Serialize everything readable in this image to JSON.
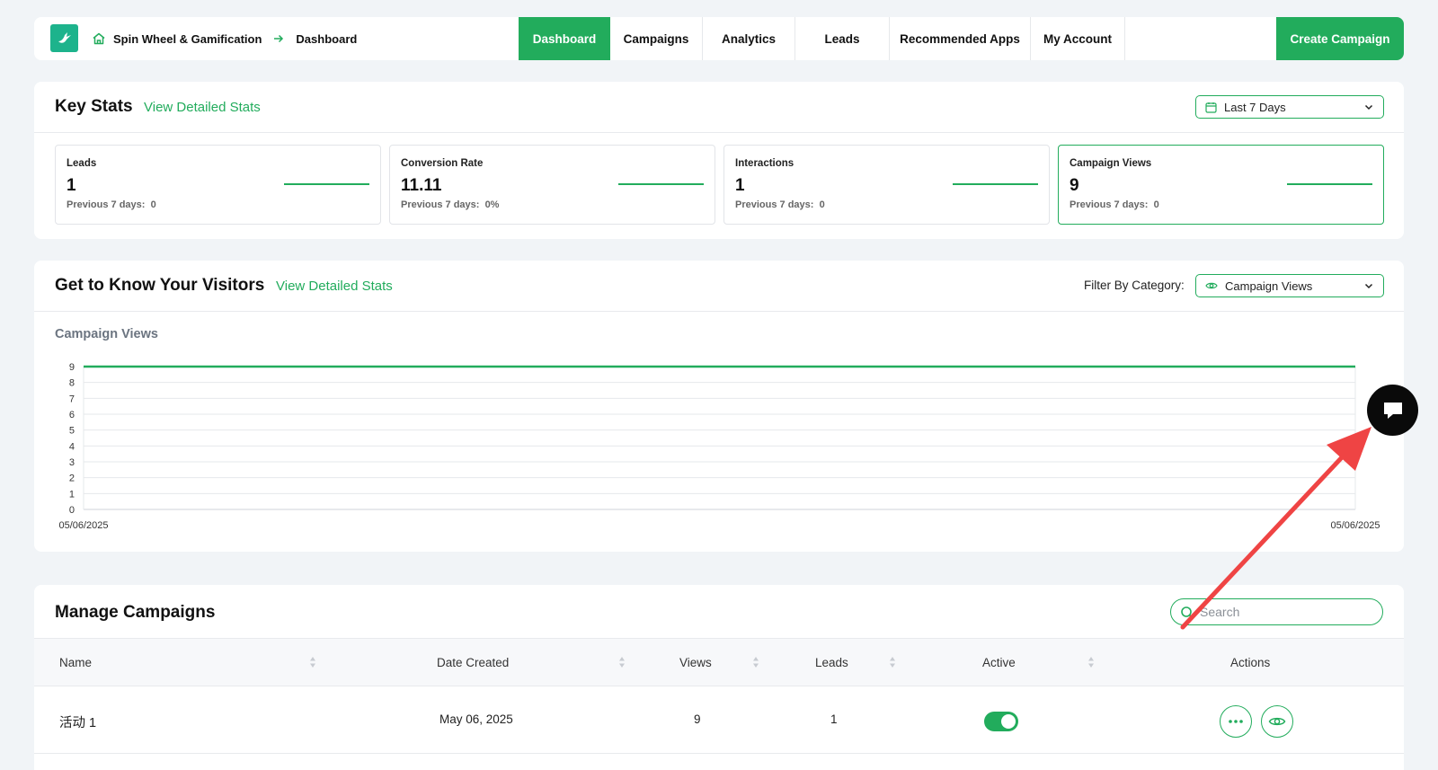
{
  "header": {
    "app_name": "Spin Wheel & Gamification",
    "current_page": "Dashboard",
    "nav": [
      {
        "label": "Dashboard",
        "active": true
      },
      {
        "label": "Campaigns",
        "active": false
      },
      {
        "label": "Analytics",
        "active": false
      },
      {
        "label": "Leads",
        "active": false
      },
      {
        "label": "Recommended Apps",
        "active": false
      },
      {
        "label": "My Account",
        "active": false
      }
    ],
    "create_label": "Create Campaign"
  },
  "key_stats": {
    "title": "Key Stats",
    "link": "View Detailed Stats",
    "range": "Last 7 Days",
    "cards": [
      {
        "label": "Leads",
        "value": "1",
        "prev_label": "Previous 7 days:",
        "prev_value": "0"
      },
      {
        "label": "Conversion Rate",
        "value": "11.11",
        "prev_label": "Previous 7 days:",
        "prev_value": "0%"
      },
      {
        "label": "Interactions",
        "value": "1",
        "prev_label": "Previous 7 days:",
        "prev_value": "0"
      },
      {
        "label": "Campaign Views",
        "value": "9",
        "prev_label": "Previous 7 days:",
        "prev_value": "0"
      }
    ]
  },
  "visitors": {
    "title": "Get to Know Your Visitors",
    "link": "View Detailed Stats",
    "filter_label": "Filter By Category:",
    "filter_value": "Campaign Views",
    "chart_title": "Campaign Views"
  },
  "chart_data": {
    "type": "line",
    "title": "Campaign Views",
    "x": [
      "05/06/2025",
      "05/06/2025"
    ],
    "series": [
      {
        "values": [
          9,
          9
        ]
      }
    ],
    "ylim": [
      0,
      9
    ],
    "yticks": [
      "0",
      "1",
      "2",
      "3",
      "4",
      "5",
      "6",
      "7",
      "8",
      "9"
    ],
    "grid": true,
    "color": "#22ac5c"
  },
  "campaigns": {
    "title": "Manage Campaigns",
    "search_placeholder": "Search",
    "columns": [
      "Name",
      "Date Created",
      "Views",
      "Leads",
      "Active",
      "Actions"
    ],
    "rows": [
      {
        "name": "活动 1",
        "date": "May 06, 2025",
        "views": "9",
        "leads": "1",
        "active": true
      }
    ]
  },
  "colors": {
    "accent": "#22ac5c",
    "logo": "#1db38c",
    "page_bg": "#f1f4f7"
  },
  "icons": {
    "logo": "bird-logo-icon",
    "home": "home-icon",
    "breadcrumb_sep": "arrow-right-icon",
    "calendar": "calendar-icon",
    "eye": "eye-icon",
    "chevron": "chevron-down-icon",
    "search": "search-icon",
    "more": "more-horizontal-icon",
    "chat": "chat-bubble-icon"
  }
}
